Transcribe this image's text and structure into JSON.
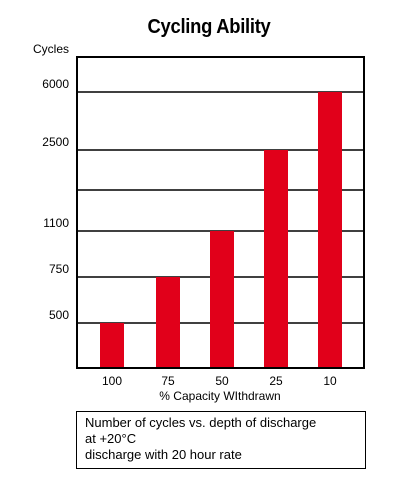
{
  "chart_data": {
    "type": "bar",
    "title": "Cycling Ability",
    "ylabel": "Cycles",
    "xlabel": "% Capacity WIthdrawn",
    "categories": [
      "100",
      "75",
      "50",
      "25",
      "10"
    ],
    "values": [
      500,
      750,
      1100,
      2500,
      6000
    ],
    "y_tick_labels": [
      "500",
      "750",
      "1100",
      "2500",
      "6000"
    ],
    "y_scale": "non-linear (labeled tick positions)",
    "bar_color": "#e1001a",
    "grid": true,
    "note_lines": [
      "Number of cycles vs. depth of discharge",
      "at +20°C",
      "discharge with 20 hour rate"
    ]
  }
}
